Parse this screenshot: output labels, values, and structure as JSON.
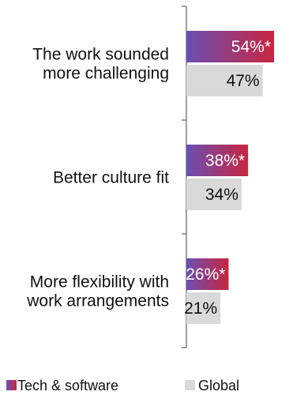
{
  "chart_data": {
    "type": "bar",
    "orientation": "horizontal",
    "categories": [
      [
        "The work sounded",
        "more challenging"
      ],
      [
        "Better culture fit"
      ],
      [
        "More flexibility with",
        "work arrangements"
      ]
    ],
    "series": [
      {
        "name": "Tech & software",
        "values": [
          54,
          38,
          26
        ],
        "labels": [
          "54%*",
          "38%*",
          "26%*"
        ],
        "gradient": [
          "#6a4fb3",
          "#c8263f"
        ],
        "label_color": "#ffffff"
      },
      {
        "name": "Global",
        "values": [
          47,
          34,
          21
        ],
        "labels": [
          "47%",
          "34%",
          "21%"
        ],
        "color": "#d9d9d9",
        "label_color": "#111111"
      }
    ],
    "xlim": [
      0,
      54
    ],
    "grid": false,
    "legend_position": "bottom"
  }
}
